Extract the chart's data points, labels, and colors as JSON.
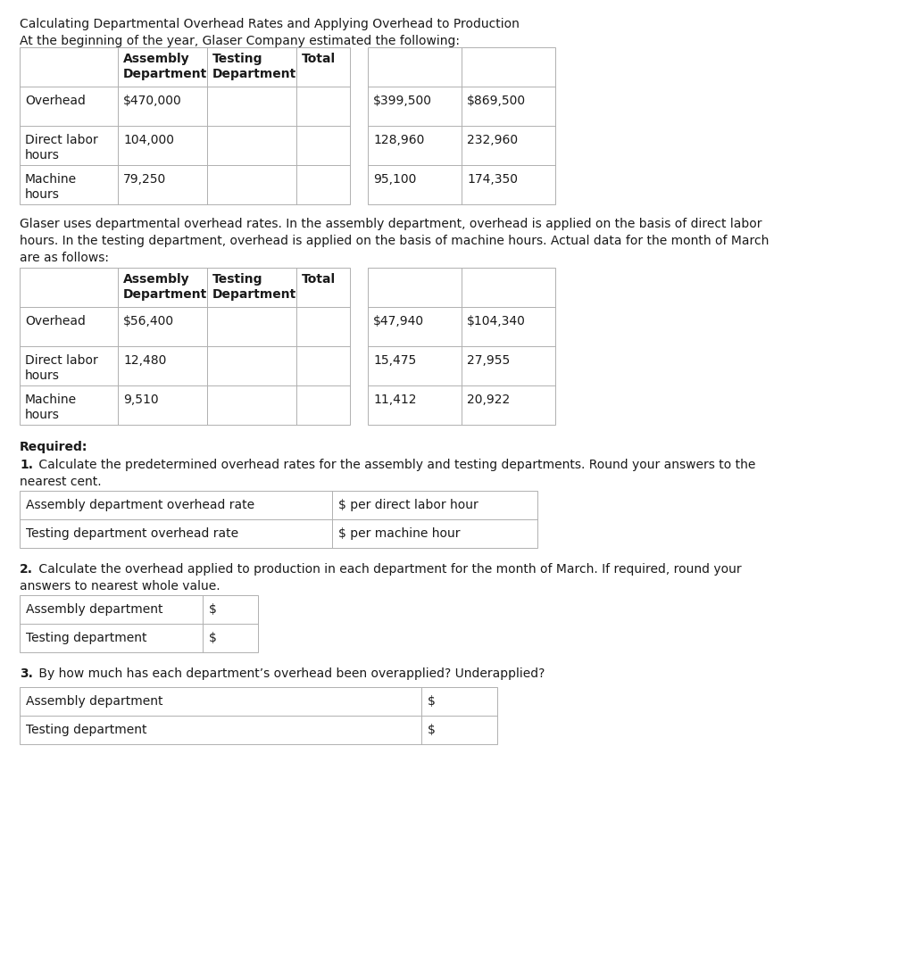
{
  "title_line1": "Calculating Departmental Overhead Rates and Applying Overhead to Production",
  "title_line2": "At the beginning of the year, Glaser Company estimated the following:",
  "middle_text_1": "Glaser uses departmental overhead rates. In the assembly department, overhead is applied on the basis of direct labor",
  "middle_text_2": "hours. In the testing department, overhead is applied on the basis of machine hours. Actual data for the month of March",
  "middle_text_3": "are as follows:",
  "table1_rows": [
    [
      "Overhead",
      "$470,000",
      "",
      "",
      "$399,500",
      "",
      "$869,500",
      ""
    ],
    [
      "Direct labor\nhours",
      "104,000",
      "",
      "",
      "128,960",
      "",
      "232,960",
      ""
    ],
    [
      "Machine\nhours",
      "79,250",
      "",
      "",
      "95,100",
      "",
      "174,350",
      ""
    ]
  ],
  "table2_rows": [
    [
      "Overhead",
      "$56,400",
      "",
      "",
      "$47,940",
      "",
      "$104,340",
      ""
    ],
    [
      "Direct labor\nhours",
      "12,480",
      "",
      "",
      "15,475",
      "",
      "27,955",
      ""
    ],
    [
      "Machine\nhours",
      "9,510",
      "",
      "",
      "11,412",
      "",
      "20,922",
      ""
    ]
  ],
  "required_label": "Required:",
  "q1_bold": "1.",
  "q1_rest": " Calculate the predetermined overhead rates for the assembly and testing departments. Round your answers to the",
  "q1_line2": "nearest cent.",
  "q2_bold": "2.",
  "q2_rest": " Calculate the overhead applied to production in each department for the month of March. If required, round your",
  "q2_line2": "answers to nearest whole value.",
  "q3_bold": "3.",
  "q3_rest": " By how much has each department’s overhead been overapplied? Underapplied?",
  "table3_rows": [
    [
      "Assembly department overhead rate",
      "$ per direct labor hour"
    ],
    [
      "Testing department overhead rate",
      "$ per machine hour"
    ]
  ],
  "table4_rows": [
    [
      "Assembly department",
      "$"
    ],
    [
      "Testing department",
      "$"
    ]
  ],
  "table5_rows": [
    [
      "Assembly department",
      "$"
    ],
    [
      "Testing department",
      "$"
    ]
  ],
  "bg_color": "#ffffff",
  "text_color": "#1a1a1a",
  "border_color": "#b0b0b0",
  "font_size": 10.0
}
